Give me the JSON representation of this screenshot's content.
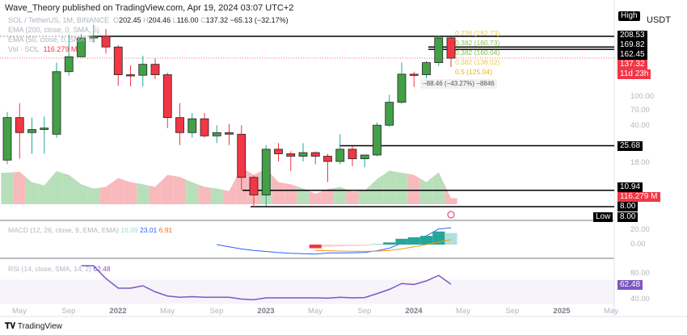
{
  "header": {
    "published": "Wave_Theory published on TradingView.com, Apr 19, 2024 03:07 UTC+2"
  },
  "legend": {
    "symbol": "SOL / TetherUS, 1M, BINANCE",
    "o_label": "O",
    "o": "202.45",
    "h_label": "H",
    "h": "204.46",
    "l_label": "L",
    "l": "116.00",
    "c_label": "C",
    "c": "137.32",
    "change": "−65.13 (−32.17%)",
    "ema200": "EMA (200, close, 0, SMA, 5)",
    "ema50": "EMA (50, close, 0, SMA, 5)",
    "vol_label": "Vol · SOL",
    "vol_value": "116.279 M",
    "macd_label": "MACD (12, 26, close, 9, EMA, EMA)",
    "macd_hist": "16.09",
    "macd_line": "23.01",
    "macd_signal": "6.91",
    "rsi_label": "RSI (14, close, SMA, 14, 2)",
    "rsi_value": "62.48"
  },
  "price_axis": {
    "high_tag": "High",
    "currency": "USDT",
    "ticks": [
      "100.00",
      "70.00",
      "40.00",
      "18.00"
    ],
    "levels": [
      "208.53",
      "169.82",
      "162.45",
      "25.68",
      "10.94",
      "8.00"
    ],
    "last_price": "137.32",
    "countdown": "11d 23h",
    "volume_tag": "116.279 M",
    "low_tag": "Low",
    "low_value": "8.00"
  },
  "macd_axis": [
    "20.00",
    "0.00"
  ],
  "rsi_axis": [
    "80.00",
    "40.00"
  ],
  "rsi_tag": "62.48",
  "x_axis": [
    {
      "t": "May",
      "y": false
    },
    {
      "t": "Sep",
      "y": false
    },
    {
      "t": "2022",
      "y": true
    },
    {
      "t": "May",
      "y": false
    },
    {
      "t": "Sep",
      "y": false
    },
    {
      "t": "2023",
      "y": true
    },
    {
      "t": "May",
      "y": false
    },
    {
      "t": "Sep",
      "y": false
    },
    {
      "t": "2024",
      "y": true
    },
    {
      "t": "May",
      "y": false
    },
    {
      "t": "Sep",
      "y": false
    },
    {
      "t": "2025",
      "y": true
    },
    {
      "t": "May",
      "y": false
    }
  ],
  "annotations": {
    "fib": [
      "0.236 (182.73)",
      "0.382 (160.73)",
      "0.382 (160.04)",
      "0.382 (138.02)",
      "0.5 (125.04)"
    ],
    "measure": "−88.46 (−43.27%) −8846"
  },
  "footer": {
    "brand": "TradingView"
  },
  "colors": {
    "up": "#43a047",
    "down": "#f23645",
    "vol_up": "#b7dfba",
    "vol_down": "#f8b9bc",
    "macd": "#2962ff",
    "signal": "#ff9800",
    "rsi": "#7e57c2",
    "level": "#000000"
  },
  "chart_data": {
    "type": "candlestick",
    "scale": "log",
    "interval": "1M",
    "first_month": "2021-04",
    "ohlc": [
      [
        19.5,
        49,
        18,
        44
      ],
      [
        44,
        58,
        20,
        33
      ],
      [
        33,
        44,
        22,
        35
      ],
      [
        35,
        45,
        22,
        36
      ],
      [
        32,
        126,
        30,
        106
      ],
      [
        106,
        216,
        98,
        141
      ],
      [
        141,
        218,
        140,
        202
      ],
      [
        202,
        260,
        187,
        209
      ],
      [
        209,
        240,
        150,
        170
      ],
      [
        170,
        176,
        81,
        100
      ],
      [
        100,
        120,
        80,
        99
      ],
      [
        99,
        144,
        80,
        122
      ],
      [
        122,
        136,
        92,
        100
      ],
      [
        100,
        104,
        36,
        44
      ],
      [
        44,
        58,
        26,
        33
      ],
      [
        33,
        48,
        30,
        43
      ],
      [
        43,
        48,
        30,
        31
      ],
      [
        31,
        38,
        27,
        33
      ],
      [
        33,
        39,
        26,
        32
      ],
      [
        32,
        38,
        11,
        14
      ],
      [
        14,
        14.5,
        8,
        10
      ],
      [
        10,
        26,
        8.1,
        24
      ],
      [
        24,
        27,
        19,
        22
      ],
      [
        22,
        23,
        15.8,
        21
      ],
      [
        21,
        27,
        19,
        22.5
      ],
      [
        22.5,
        23,
        18,
        21
      ],
      [
        21,
        22,
        12.8,
        19
      ],
      [
        19,
        32,
        18,
        24
      ],
      [
        24,
        25.5,
        17.3,
        20
      ],
      [
        20,
        21.4,
        17,
        21.5
      ],
      [
        21.5,
        40,
        21,
        38
      ],
      [
        38,
        68,
        37,
        59
      ],
      [
        59,
        126,
        57,
        101
      ],
      [
        101,
        106,
        79,
        100
      ],
      [
        100,
        130,
        93,
        126
      ],
      [
        126,
        210,
        118,
        202.45
      ],
      [
        202.45,
        204.46,
        116,
        137.32
      ]
    ],
    "volume_m": [
      600,
      620,
      420,
      360,
      630,
      560,
      380,
      300,
      330,
      500,
      420,
      380,
      330,
      560,
      520,
      420,
      330,
      300,
      250,
      700,
      560,
      680,
      420,
      380,
      300,
      200,
      290,
      330,
      240,
      260,
      480,
      640,
      600,
      560,
      420,
      610,
      116.279
    ],
    "levels": [
      208.53,
      169.82,
      162.45,
      25.68,
      10.94,
      8.0
    ],
    "last_price": 137.32,
    "macd": {
      "start_month": "2022-09",
      "line": [
        0,
        -3,
        -6,
        -8,
        -9.5,
        -11,
        -12,
        -12.5,
        -13,
        -11.5,
        -11.5,
        -11.2,
        -10.8,
        -8.5,
        -5,
        2,
        7,
        12,
        21.5,
        23.01
      ]
    },
    "signal": {
      "start_month": "2023-05",
      "line": [
        -8,
        -8.5,
        -9,
        -9.2,
        -9.3,
        -9,
        -8,
        -6,
        -3,
        0,
        3.5,
        6.91
      ],
      "hist": [
        -5,
        -3,
        -2.5,
        -2,
        -1.5,
        0.5,
        3,
        8,
        10,
        12,
        18,
        16.09
      ]
    },
    "rsi": {
      "start_month": "2021-10",
      "values": [
        93,
        93,
        72,
        56,
        56,
        60,
        50,
        43,
        41,
        42,
        41,
        41,
        41,
        38,
        37,
        40,
        40,
        40,
        40,
        40,
        39.5,
        41,
        40,
        40.5,
        47,
        54,
        63.7,
        62,
        68,
        77,
        62.48
      ],
      "band": [
        30,
        70
      ]
    }
  }
}
